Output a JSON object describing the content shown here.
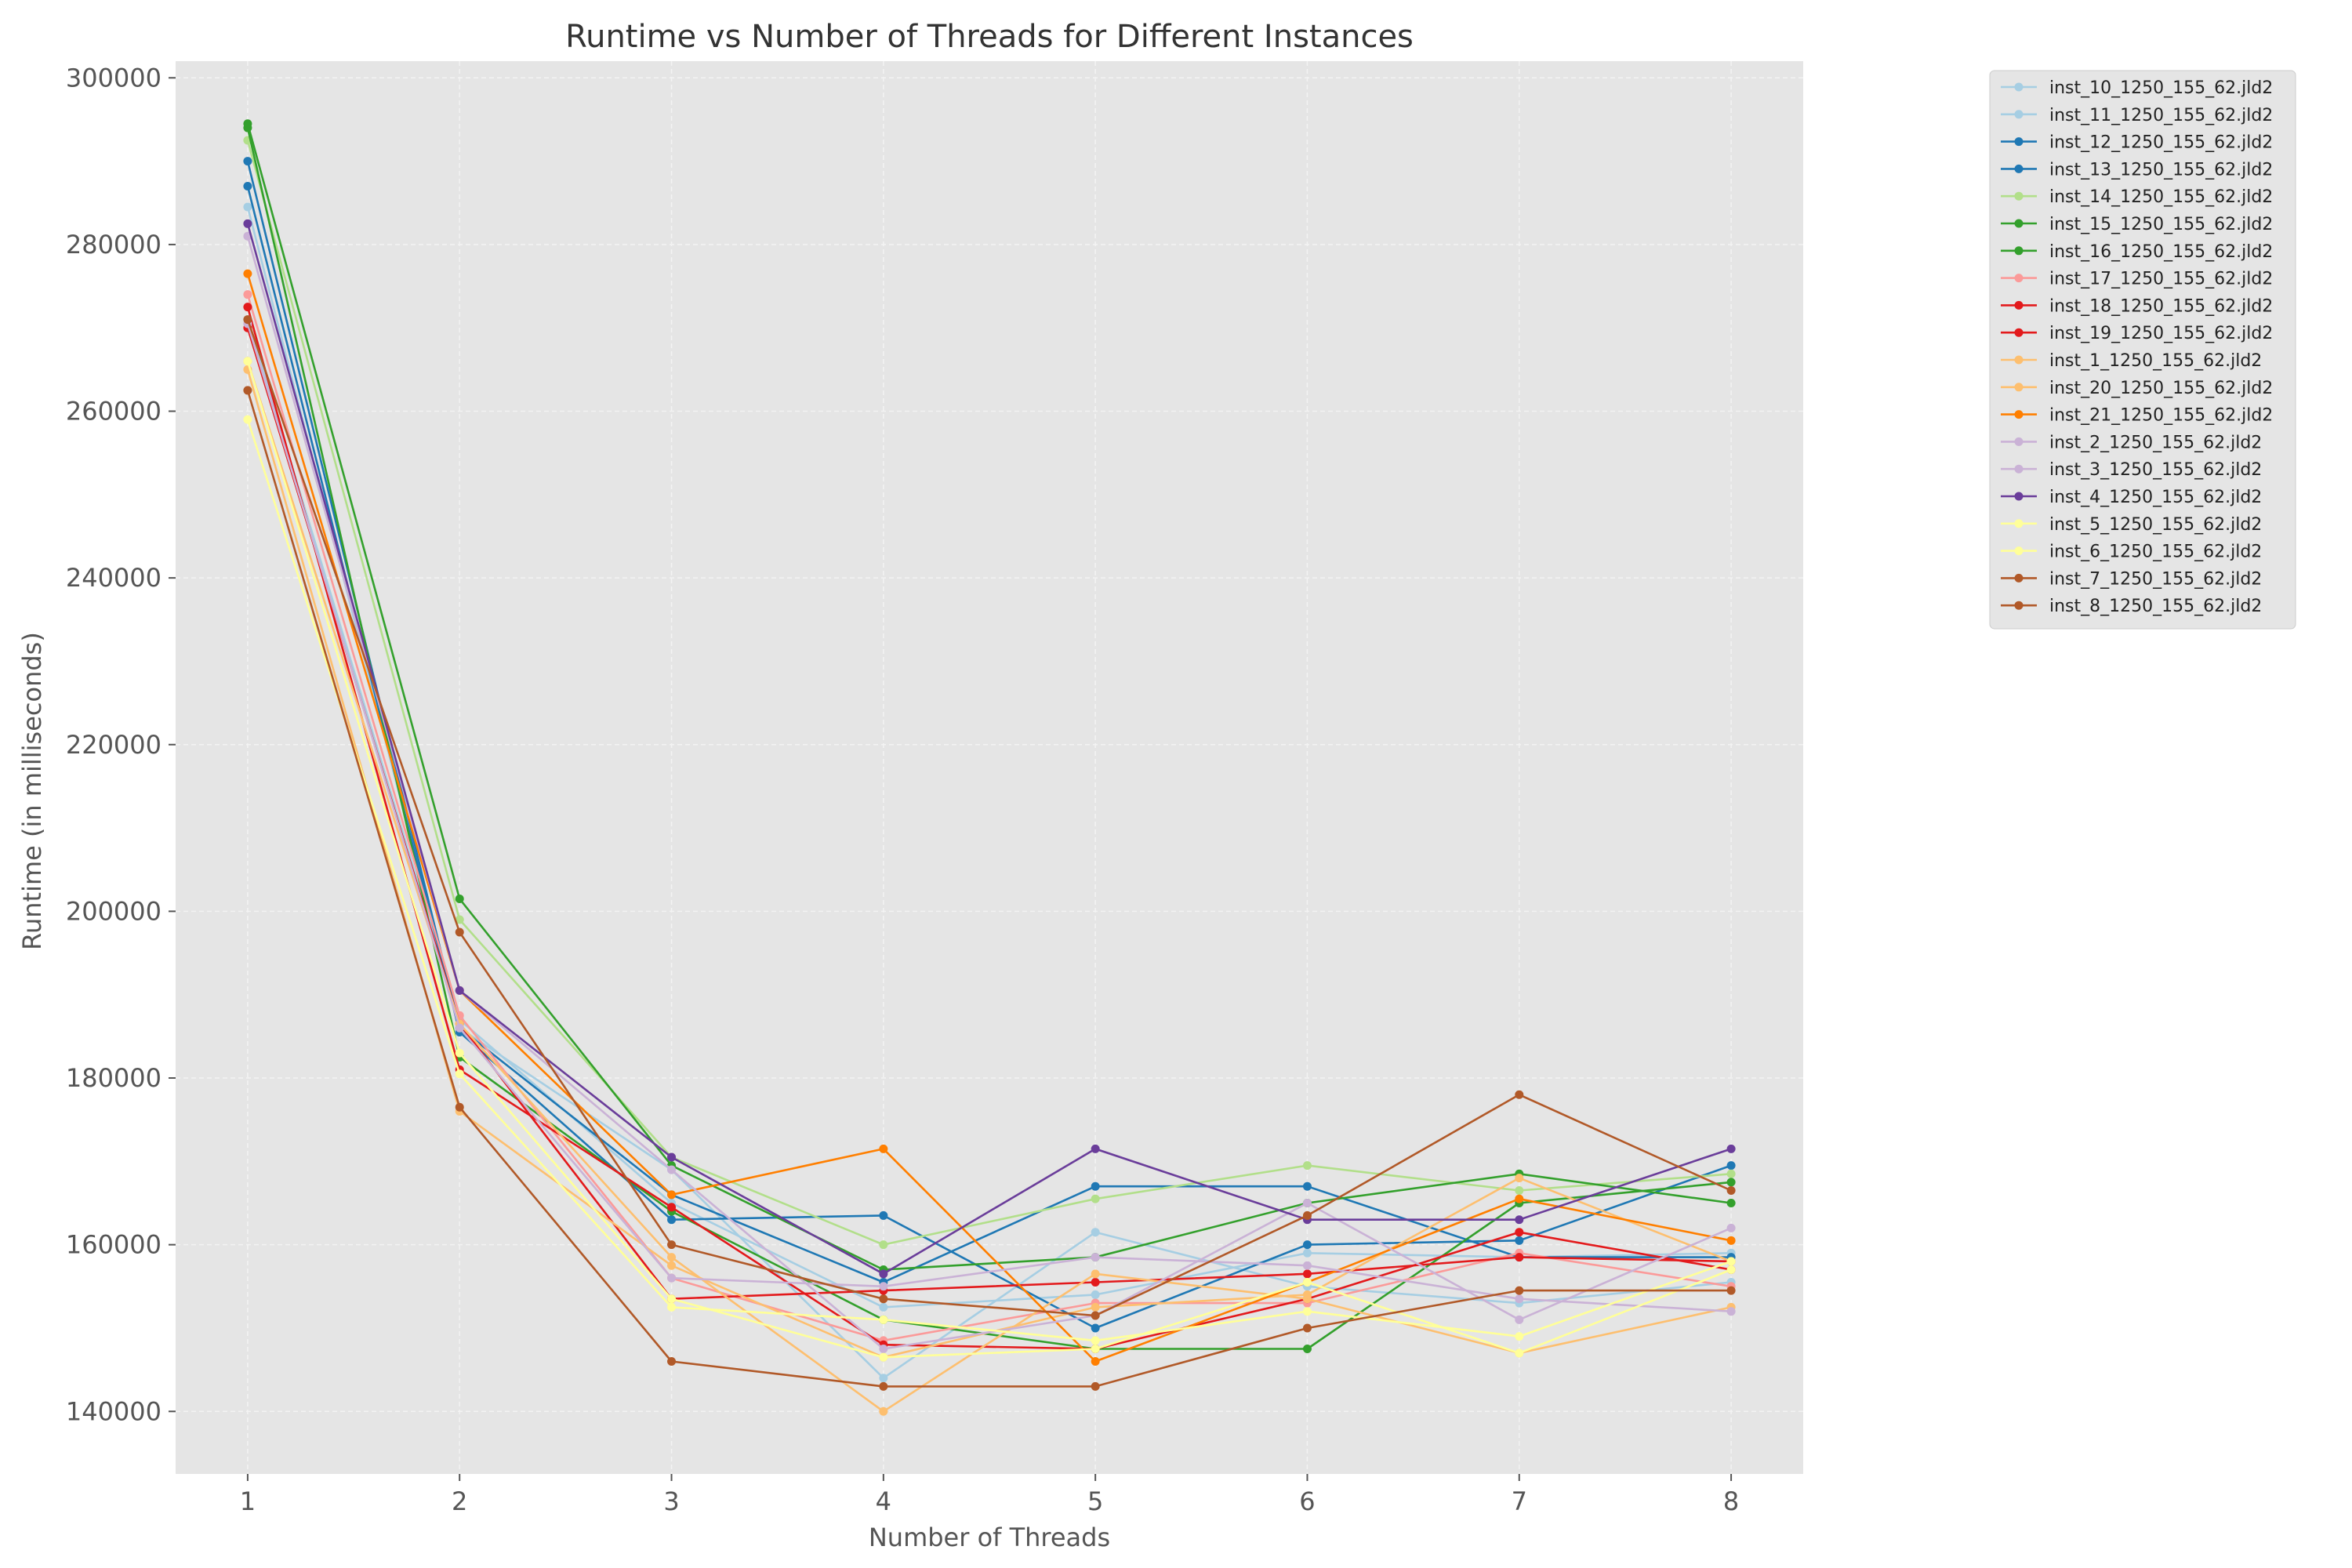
{
  "chart_data": {
    "type": "line",
    "title": "Runtime vs Number of Threads for Different Instances",
    "xlabel": "Number of Threads",
    "ylabel": "Runtime (in milliseconds)",
    "x": [
      1,
      2,
      3,
      4,
      5,
      6,
      7,
      8
    ],
    "xlim": [
      0.66,
      8.34
    ],
    "ylim": [
      132500,
      302000
    ],
    "yticks": [
      140000,
      160000,
      180000,
      200000,
      220000,
      240000,
      260000,
      280000,
      300000
    ],
    "grid": true,
    "legend_position": "outside-right",
    "series": [
      {
        "name": "inst_10_1250_155_62.jld2",
        "color": "#a6cee3",
        "values": [
          284500,
          186000,
          169000,
          144000,
          161500,
          155000,
          153000,
          155500
        ]
      },
      {
        "name": "inst_11_1250_155_62.jld2",
        "color": "#a6cee3",
        "values": [
          271000,
          187000,
          165000,
          152500,
          154000,
          159000,
          158500,
          159000
        ]
      },
      {
        "name": "inst_12_1250_155_62.jld2",
        "color": "#1f78b4",
        "values": [
          287000,
          185500,
          163000,
          163500,
          150000,
          160000,
          160500,
          169500
        ]
      },
      {
        "name": "inst_13_1250_155_62.jld2",
        "color": "#1f78b4",
        "values": [
          290000,
          186000,
          166000,
          155500,
          167000,
          167000,
          158500,
          158500
        ]
      },
      {
        "name": "inst_14_1250_155_62.jld2",
        "color": "#b2df8a",
        "values": [
          292500,
          199000,
          170500,
          160000,
          165500,
          169500,
          166500,
          168500
        ]
      },
      {
        "name": "inst_15_1250_155_62.jld2",
        "color": "#33a02c",
        "values": [
          294000,
          182500,
          164000,
          151000,
          147500,
          147500,
          165000,
          167500
        ]
      },
      {
        "name": "inst_16_1250_155_62.jld2",
        "color": "#33a02c",
        "values": [
          294500,
          201500,
          169500,
          157000,
          158500,
          165000,
          168500,
          165000
        ]
      },
      {
        "name": "inst_17_1250_155_62.jld2",
        "color": "#fb9a99",
        "values": [
          274000,
          187500,
          156000,
          148500,
          153000,
          153000,
          159000,
          155000
        ]
      },
      {
        "name": "inst_18_1250_155_62.jld2",
        "color": "#e31a1c",
        "values": [
          272500,
          181000,
          164500,
          148000,
          147500,
          153500,
          161500,
          157000
        ]
      },
      {
        "name": "inst_19_1250_155_62.jld2",
        "color": "#e31a1c",
        "values": [
          270000,
          186500,
          153500,
          154500,
          155500,
          156500,
          158500,
          158000
        ]
      },
      {
        "name": "inst_1_1250_155_62.jld2",
        "color": "#fdbf6f",
        "values": [
          266000,
          186500,
          158500,
          140000,
          156500,
          153500,
          147000,
          152500
        ]
      },
      {
        "name": "inst_20_1250_155_62.jld2",
        "color": "#fdbf6f",
        "values": [
          265000,
          176000,
          157500,
          146500,
          152500,
          154000,
          168000,
          158000
        ]
      },
      {
        "name": "inst_21_1250_155_62.jld2",
        "color": "#ff7f00",
        "values": [
          276500,
          190500,
          166000,
          171500,
          146000,
          155500,
          165500,
          160500
        ]
      },
      {
        "name": "inst_2_1250_155_62.jld2",
        "color": "#cab2d6",
        "values": [
          270500,
          186000,
          156000,
          155000,
          158500,
          157500,
          153500,
          152000
        ]
      },
      {
        "name": "inst_3_1250_155_62.jld2",
        "color": "#cab2d6",
        "values": [
          281000,
          190500,
          169000,
          147500,
          151500,
          165000,
          151000,
          162000
        ]
      },
      {
        "name": "inst_4_1250_155_62.jld2",
        "color": "#6a3d9a",
        "values": [
          282500,
          190500,
          170500,
          156500,
          171500,
          163000,
          163000,
          171500
        ]
      },
      {
        "name": "inst_5_1250_155_62.jld2",
        "color": "#ffff99",
        "values": [
          259000,
          180500,
          152500,
          151000,
          148500,
          152000,
          149000,
          158000
        ]
      },
      {
        "name": "inst_6_1250_155_62.jld2",
        "color": "#ffff99",
        "values": [
          266000,
          183000,
          153500,
          146500,
          147500,
          155500,
          147000,
          157000
        ]
      },
      {
        "name": "inst_7_1250_155_62.jld2",
        "color": "#b15928",
        "values": [
          271000,
          197500,
          160000,
          153500,
          151500,
          163500,
          178000,
          166500
        ]
      },
      {
        "name": "inst_8_1250_155_62.jld2",
        "color": "#b15928",
        "values": [
          262500,
          176500,
          146000,
          143000,
          143000,
          150000,
          154500,
          154500
        ]
      }
    ]
  }
}
